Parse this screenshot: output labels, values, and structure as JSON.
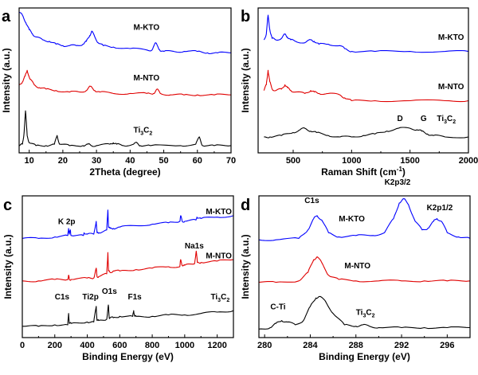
{
  "chart_data": [
    {
      "panel": "a",
      "type": "line",
      "xlabel": "2Theta (degree)",
      "ylabel": "Intensity (a.u.)",
      "xlim": [
        7,
        70
      ],
      "ylim": [
        0,
        1
      ],
      "xticks": [
        10,
        20,
        30,
        40,
        50,
        60,
        70
      ],
      "grid": false,
      "series": [
        {
          "name": "M-KTO",
          "color": "#0000ff",
          "x": [
            7,
            8,
            9,
            10,
            11,
            12,
            14,
            16,
            18,
            20,
            22,
            24,
            26,
            27,
            28,
            28.6,
            29.5,
            30.5,
            32,
            35,
            40,
            45,
            46.5,
            47.6,
            48.8,
            50,
            53,
            56,
            60,
            63,
            66,
            70
          ],
          "y": [
            0.97,
            0.95,
            0.9,
            0.85,
            0.82,
            0.8,
            0.78,
            0.77,
            0.75,
            0.74,
            0.74,
            0.74,
            0.75,
            0.77,
            0.81,
            0.84,
            0.8,
            0.76,
            0.74,
            0.73,
            0.72,
            0.71,
            0.71,
            0.76,
            0.71,
            0.7,
            0.7,
            0.7,
            0.7,
            0.69,
            0.69,
            0.69
          ]
        },
        {
          "name": "M-NTO",
          "color": "#e00000",
          "x": [
            7,
            8,
            8.8,
            9.4,
            10.2,
            11.5,
            13,
            15,
            18,
            22,
            25,
            27,
            28.2,
            29.5,
            31,
            35,
            40,
            45,
            47,
            48,
            49,
            52,
            56,
            60,
            65,
            70
          ],
          "y": [
            0.47,
            0.49,
            0.53,
            0.57,
            0.51,
            0.47,
            0.45,
            0.44,
            0.43,
            0.42,
            0.42,
            0.43,
            0.46,
            0.43,
            0.42,
            0.41,
            0.41,
            0.41,
            0.41,
            0.44,
            0.41,
            0.4,
            0.4,
            0.4,
            0.4,
            0.4
          ]
        },
        {
          "name": "Ti3C2",
          "color": "#000000",
          "x": [
            7,
            8,
            8.4,
            8.9,
            9.4,
            10,
            12,
            15,
            17.5,
            18.3,
            19,
            22,
            26,
            27.5,
            28.5,
            30,
            34,
            35,
            36,
            38,
            41,
            42,
            43,
            46,
            55,
            59.5,
            60.6,
            61.5,
            65,
            70
          ],
          "y": [
            0.05,
            0.06,
            0.12,
            0.29,
            0.12,
            0.07,
            0.05,
            0.05,
            0.06,
            0.12,
            0.06,
            0.05,
            0.05,
            0.06,
            0.05,
            0.05,
            0.06,
            0.07,
            0.06,
            0.05,
            0.06,
            0.07,
            0.05,
            0.05,
            0.05,
            0.06,
            0.11,
            0.05,
            0.05,
            0.05
          ]
        }
      ],
      "labels": [
        {
          "text": "M-KTO",
          "x": 41,
          "y": 0.85
        },
        {
          "text": "M-NTO",
          "x": 41,
          "y": 0.5
        },
        {
          "text": "Ti",
          "sub": "3",
          "text2": "C",
          "sub2": "2",
          "x": 41,
          "y": 0.14
        }
      ]
    },
    {
      "panel": "b",
      "type": "line",
      "xlabel": "Raman Shift (cm",
      "xlabel_sup": "-1",
      "xlabel_end": ")",
      "ylabel": "Intensity (a.u.)",
      "xlim": [
        200,
        2000
      ],
      "ylim": [
        0,
        1
      ],
      "xticks": [
        500,
        1000,
        1500,
        2000
      ],
      "grid": false,
      "series": [
        {
          "name": "M-KTO",
          "color": "#0000ff",
          "x": [
            250,
            270,
            285,
            300,
            320,
            350,
            400,
            430,
            450,
            480,
            520,
            600,
            650,
            680,
            720,
            800,
            900,
            940,
            1000,
            1200,
            1500,
            1800,
            2000
          ],
          "y": [
            0.78,
            0.82,
            0.95,
            0.85,
            0.79,
            0.78,
            0.79,
            0.82,
            0.8,
            0.78,
            0.77,
            0.76,
            0.78,
            0.77,
            0.75,
            0.75,
            0.74,
            0.72,
            0.7,
            0.7,
            0.7,
            0.7,
            0.7
          ]
        },
        {
          "name": "M-NTO",
          "color": "#e00000",
          "x": [
            250,
            270,
            285,
            300,
            320,
            350,
            400,
            430,
            450,
            480,
            520,
            600,
            650,
            680,
            720,
            800,
            900,
            940,
            1000,
            1200,
            1500,
            1800,
            2000
          ],
          "y": [
            0.43,
            0.47,
            0.57,
            0.49,
            0.44,
            0.43,
            0.44,
            0.47,
            0.45,
            0.43,
            0.42,
            0.41,
            0.43,
            0.42,
            0.41,
            0.41,
            0.4,
            0.38,
            0.36,
            0.36,
            0.36,
            0.36,
            0.36
          ]
        },
        {
          "name": "Ti3C2",
          "color": "#000000",
          "x": [
            250,
            300,
            400,
            500,
            560,
            600,
            650,
            700,
            800,
            900,
            1000,
            1100,
            1200,
            1300,
            1400,
            1500,
            1560,
            1600,
            1650,
            1700,
            1800,
            2000
          ],
          "y": [
            0.11,
            0.11,
            0.12,
            0.14,
            0.16,
            0.17,
            0.15,
            0.14,
            0.12,
            0.11,
            0.11,
            0.12,
            0.13,
            0.15,
            0.17,
            0.17,
            0.16,
            0.15,
            0.13,
            0.12,
            0.11,
            0.11
          ]
        }
      ],
      "labels": [
        {
          "text": "M-KTO",
          "x": 1740,
          "y": 0.78
        },
        {
          "text": "M-NTO",
          "x": 1740,
          "y": 0.44
        },
        {
          "text": "D",
          "x": 1390,
          "y": 0.22
        },
        {
          "text": "G",
          "x": 1590,
          "y": 0.22
        },
        {
          "text": "Ti",
          "sub": "3",
          "text2": "C",
          "sub2": "2",
          "x": 1730,
          "y": 0.22
        }
      ]
    },
    {
      "panel": "c",
      "type": "line",
      "xlabel": "Binding Energy (eV)",
      "ylabel": "Intensity (a.u.)",
      "xlim": [
        0,
        1300
      ],
      "ylim": [
        0,
        1
      ],
      "xticks": [
        0,
        200,
        400,
        600,
        800,
        1000,
        1200
      ],
      "grid": false,
      "series": [
        {
          "name": "M-KTO",
          "color": "#0000ff",
          "x": [
            0,
            100,
            200,
            280,
            285,
            290,
            296,
            300,
            377,
            380,
            400,
            440,
            455,
            460,
            470,
            520,
            527,
            531,
            540,
            560,
            600,
            700,
            800,
            900,
            970,
            975,
            985,
            1000,
            1070,
            1075,
            1100,
            1200,
            1300
          ],
          "y": [
            0.7,
            0.7,
            0.71,
            0.72,
            0.77,
            0.73,
            0.76,
            0.72,
            0.72,
            0.74,
            0.73,
            0.73,
            0.82,
            0.74,
            0.74,
            0.76,
            0.9,
            0.78,
            0.77,
            0.77,
            0.78,
            0.79,
            0.8,
            0.81,
            0.82,
            0.86,
            0.82,
            0.82,
            0.83,
            0.85,
            0.84,
            0.85,
            0.86
          ]
        },
        {
          "name": "M-NTO",
          "color": "#e00000",
          "x": [
            0,
            100,
            200,
            280,
            285,
            290,
            300,
            400,
            440,
            455,
            460,
            470,
            520,
            527,
            531,
            540,
            560,
            600,
            700,
            800,
            900,
            970,
            975,
            985,
            1000,
            1060,
            1071,
            1078,
            1100,
            1200,
            1300
          ],
          "y": [
            0.4,
            0.4,
            0.41,
            0.41,
            0.44,
            0.41,
            0.41,
            0.42,
            0.42,
            0.49,
            0.43,
            0.43,
            0.45,
            0.6,
            0.47,
            0.46,
            0.47,
            0.47,
            0.48,
            0.49,
            0.5,
            0.5,
            0.55,
            0.51,
            0.51,
            0.52,
            0.61,
            0.53,
            0.53,
            0.54,
            0.55
          ]
        },
        {
          "name": "Ti3C2",
          "color": "#000000",
          "x": [
            0,
            100,
            200,
            280,
            285,
            290,
            300,
            400,
            440,
            455,
            460,
            470,
            520,
            530,
            535,
            540,
            560,
            600,
            680,
            686,
            692,
            700,
            800,
            900,
            1000,
            1100,
            1200,
            1300
          ],
          "y": [
            0.08,
            0.08,
            0.09,
            0.09,
            0.17,
            0.1,
            0.1,
            0.11,
            0.11,
            0.22,
            0.12,
            0.12,
            0.13,
            0.23,
            0.14,
            0.14,
            0.14,
            0.15,
            0.15,
            0.19,
            0.15,
            0.15,
            0.15,
            0.16,
            0.16,
            0.17,
            0.18,
            0.19
          ]
        }
      ],
      "labels": [
        {
          "text": "M-KTO",
          "x": 1130,
          "y": 0.87
        },
        {
          "text": "K 2p",
          "x": 220,
          "y": 0.8
        },
        {
          "text": "Na1s",
          "x": 1000,
          "y": 0.63
        },
        {
          "text": "M-NTO",
          "x": 1130,
          "y": 0.56
        },
        {
          "text": "C1s",
          "x": 200,
          "y": 0.27
        },
        {
          "text": "Ti2p",
          "x": 370,
          "y": 0.27
        },
        {
          "text": "O1s",
          "x": 490,
          "y": 0.31
        },
        {
          "text": "F1s",
          "x": 650,
          "y": 0.27
        },
        {
          "text": "Ti",
          "sub": "3",
          "text2": "C",
          "sub2": "2",
          "x": 1160,
          "y": 0.27
        }
      ]
    },
    {
      "panel": "d",
      "type": "line",
      "xlabel": "Binding Energy (eV)",
      "ylabel": "Intensity (a.u.)",
      "xlim": [
        279.5,
        298
      ],
      "ylim": [
        0,
        1
      ],
      "xticks": [
        280,
        284,
        288,
        292,
        296
      ],
      "grid": false,
      "series": [
        {
          "name": "M-KTO",
          "color": "#0000ff",
          "x": [
            279.5,
            281,
            283,
            283.8,
            284.3,
            284.6,
            285,
            285.6,
            286.5,
            288,
            289.5,
            290.5,
            291.3,
            291.8,
            292.2,
            292.6,
            293.2,
            293.8,
            294.3,
            294.8,
            295.1,
            295.5,
            296,
            297,
            298
          ],
          "y": [
            0.69,
            0.69,
            0.7,
            0.76,
            0.84,
            0.86,
            0.83,
            0.74,
            0.71,
            0.72,
            0.72,
            0.74,
            0.84,
            0.95,
            0.98,
            0.94,
            0.82,
            0.76,
            0.77,
            0.82,
            0.84,
            0.82,
            0.74,
            0.71,
            0.7
          ]
        },
        {
          "name": "M-NTO",
          "color": "#e00000",
          "x": [
            279.5,
            281,
            283,
            283.8,
            284.3,
            284.6,
            285,
            285.6,
            286.5,
            288,
            290,
            292,
            294,
            296,
            298
          ],
          "y": [
            0.39,
            0.39,
            0.4,
            0.46,
            0.55,
            0.57,
            0.53,
            0.44,
            0.41,
            0.4,
            0.4,
            0.4,
            0.4,
            0.4,
            0.4
          ]
        },
        {
          "name": "Ti3C2",
          "color": "#000000",
          "x": [
            279.5,
            280.5,
            281,
            281.5,
            282,
            282.7,
            283.4,
            284,
            284.5,
            284.8,
            285.3,
            286,
            287,
            288,
            288.6,
            289.2,
            290,
            292,
            294,
            296,
            298
          ],
          "y": [
            0.06,
            0.07,
            0.1,
            0.12,
            0.11,
            0.09,
            0.12,
            0.22,
            0.28,
            0.29,
            0.26,
            0.17,
            0.09,
            0.08,
            0.09,
            0.08,
            0.07,
            0.07,
            0.07,
            0.07,
            0.07
          ]
        }
      ],
      "labels": [
        {
          "text": "C1s",
          "x": 283.5,
          "y": 0.95
        },
        {
          "text": "K2p3/2",
          "x": 290.5,
          "y": 1.08
        },
        {
          "text": "K2p1/2",
          "x": 294.2,
          "y": 0.9
        },
        {
          "text": "M-KTO",
          "x": 286.5,
          "y": 0.82
        },
        {
          "text": "M-NTO",
          "x": 287,
          "y": 0.49
        },
        {
          "text": "C-Ti",
          "x": 280.5,
          "y": 0.2
        },
        {
          "text": "Ti",
          "sub": "3",
          "text2": "C",
          "sub2": "2",
          "x": 288,
          "y": 0.16
        }
      ]
    }
  ],
  "panels": {
    "a": {
      "tag": "a"
    },
    "b": {
      "tag": "b"
    },
    "c": {
      "tag": "c"
    },
    "d": {
      "tag": "d"
    }
  }
}
